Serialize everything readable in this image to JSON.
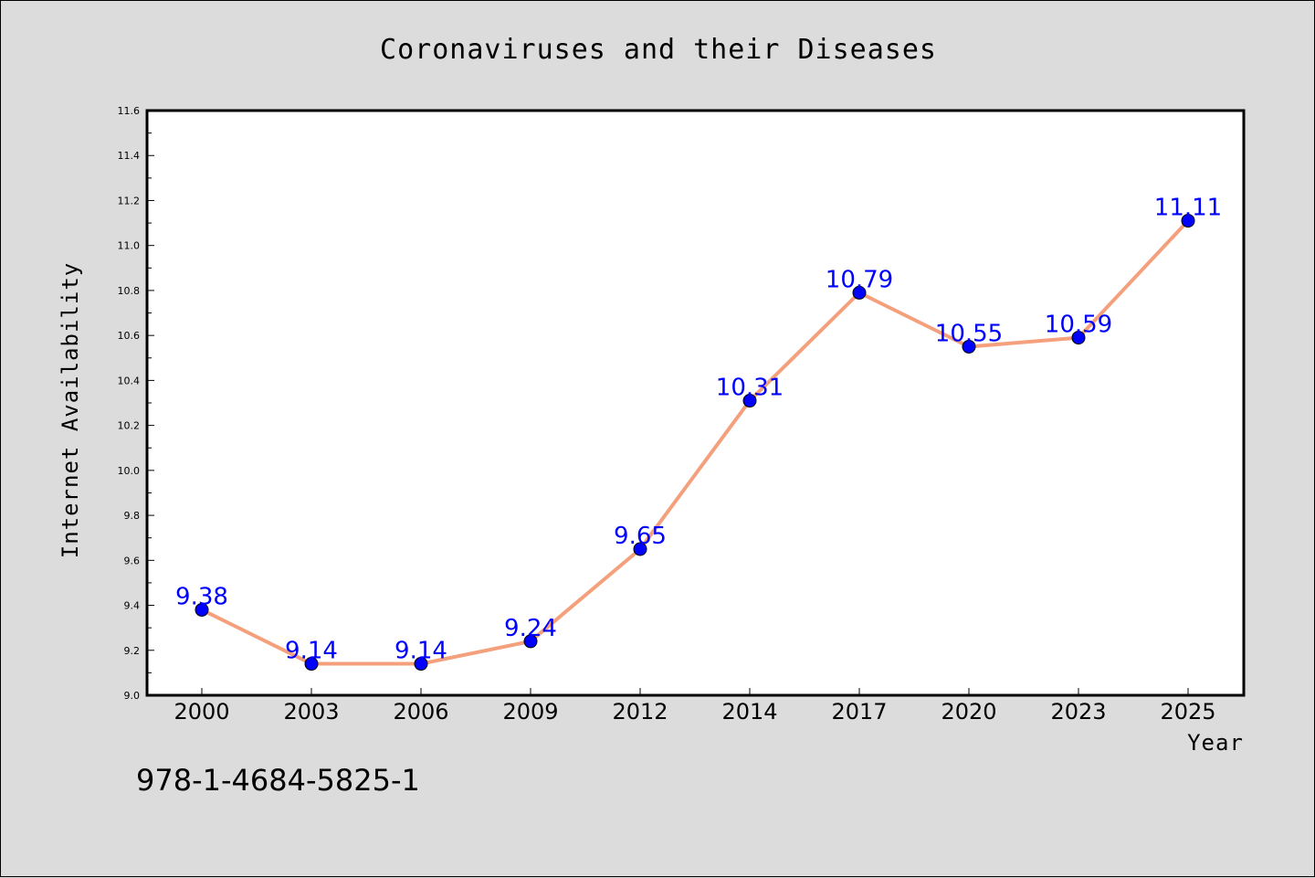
{
  "chart_data": {
    "type": "line",
    "title": "Coronaviruses and their Diseases",
    "xlabel": "Year",
    "ylabel": "Internet Availability",
    "categories": [
      "2000",
      "2003",
      "2006",
      "2009",
      "2012",
      "2014",
      "2017",
      "2020",
      "2023",
      "2025"
    ],
    "series": [
      {
        "values": [
          9.38,
          9.14,
          9.14,
          9.24,
          9.65,
          10.31,
          10.79,
          10.55,
          10.59,
          11.11
        ],
        "data_labels": [
          "9.38",
          "9.14",
          "9.14",
          "9.24",
          "9.65",
          "10.31",
          "10.79",
          "10.55",
          "10.59",
          "11.11"
        ],
        "line_color": "#f4a07c",
        "marker_color": "#0000ff"
      }
    ],
    "ylim": [
      9.0,
      11.6
    ],
    "yticks": [
      "9.0",
      "9.2",
      "9.4",
      "9.6",
      "9.8",
      "10.0",
      "10.2",
      "10.4",
      "10.6",
      "10.8",
      "11.0",
      "11.2",
      "11.4",
      "11.6"
    ],
    "grid": false,
    "legend": "none"
  },
  "annotation": {
    "isbn": "978-1-4684-5825-1"
  },
  "colors": {
    "background": "#dcdcdc",
    "plot_background": "#ffffff",
    "line": "#f4a07c",
    "marker": "#0000ff",
    "data_label": "#0000ff"
  }
}
